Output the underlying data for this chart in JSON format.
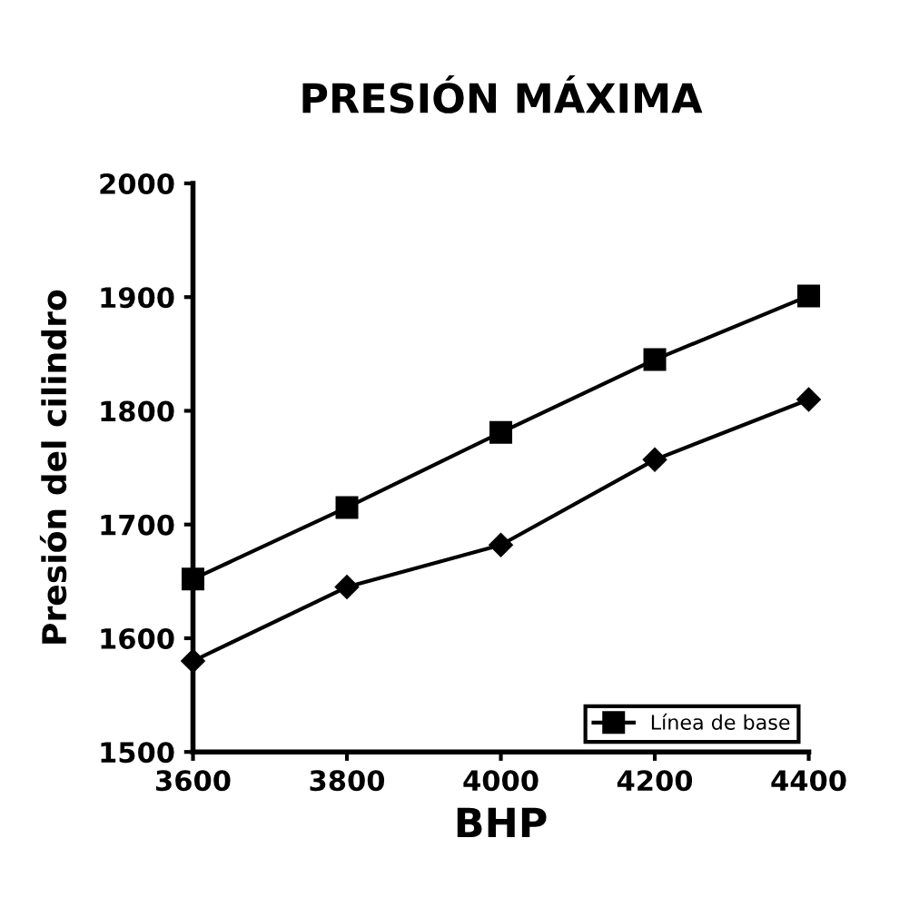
{
  "chart_data": {
    "type": "line",
    "title": "PRESIÓN MÁXIMA",
    "xlabel": "BHP",
    "ylabel": "Presión del cilindro",
    "x": [
      3600,
      3800,
      4000,
      4200,
      4400
    ],
    "series": [
      {
        "color": "#000000",
        "marker": "diamond",
        "values": [
          1580,
          1645,
          1682,
          1757,
          1810
        ]
      },
      {
        "name": "Línea de base",
        "color": "#000000",
        "marker": "square",
        "values": [
          1652,
          1715,
          1781,
          1845,
          1901
        ]
      }
    ],
    "xlim": [
      3600,
      4400
    ],
    "xticks": [
      3600,
      3800,
      4000,
      4200,
      4400
    ],
    "ylim": [
      1500,
      2000
    ],
    "yticks": [
      1500,
      1600,
      1700,
      1800,
      1900,
      2000
    ],
    "grid": false,
    "legend": "bottom right",
    "line_style": "solid"
  }
}
